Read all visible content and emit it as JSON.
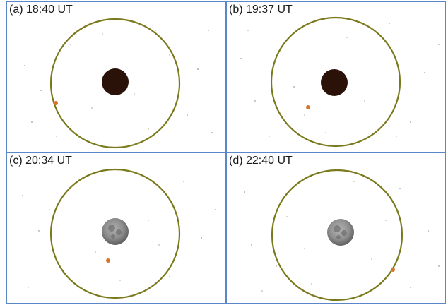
{
  "panels": [
    {
      "label": "(a) 18:40 UT",
      "moon_phase": "eclipsed-dark"
    },
    {
      "label": "(b) 19:37 UT",
      "moon_phase": "eclipsed-dark"
    },
    {
      "label": "(c) 20:34 UT",
      "moon_phase": "full-grey"
    },
    {
      "label": "(d) 22:40 UT",
      "moon_phase": "full-grey"
    }
  ],
  "colors": {
    "border": "#5b86c9",
    "orbit_ring": "#7a7a1c",
    "moon_dark": "#2a1208",
    "moon_grey": "#8c8c8c",
    "object_dot": "#d9742a"
  }
}
